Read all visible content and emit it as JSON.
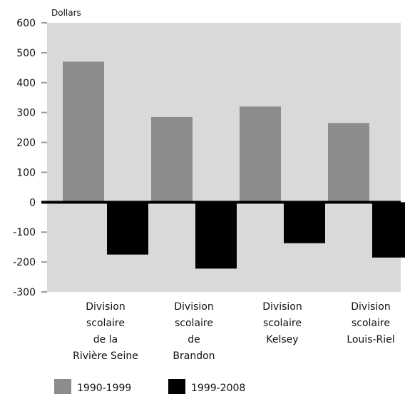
{
  "chart_data": {
    "type": "bar",
    "ylabel": "Dollars",
    "ylim": [
      -300,
      600
    ],
    "yticks": [
      600,
      500,
      400,
      300,
      200,
      100,
      0,
      -100,
      -200,
      -300
    ],
    "categories": [
      [
        "Division",
        "scolaire",
        "de la",
        "Rivière Seine"
      ],
      [
        "Division",
        "scolaire",
        "de",
        "Brandon"
      ],
      [
        "Division",
        "scolaire",
        "Kelsey"
      ],
      [
        "Division",
        "scolaire",
        "Louis-Riel"
      ]
    ],
    "series": [
      {
        "name": "1990-1999",
        "color": "#8c8c8c",
        "values": [
          470,
          285,
          320,
          265
        ]
      },
      {
        "name": "1999-2008",
        "color": "#000000",
        "values": [
          -175,
          -222,
          -137,
          -185
        ]
      }
    ],
    "grid": false,
    "plot_background": "#d9d9d9",
    "legend_position": "bottom-left"
  }
}
